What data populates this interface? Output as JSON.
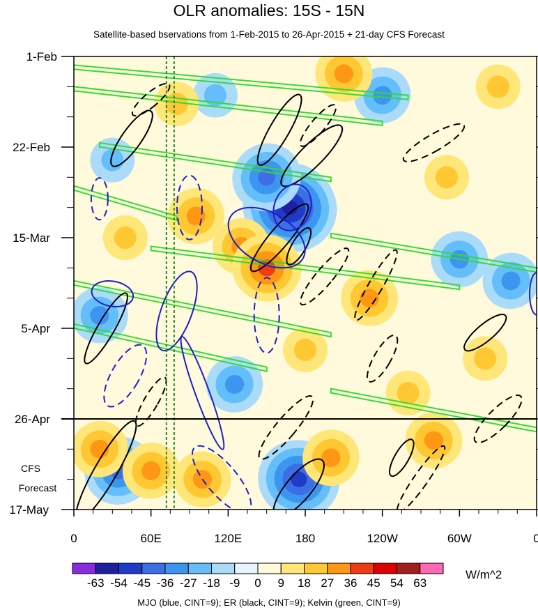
{
  "chart_data": {
    "type": "heatmap",
    "title": "OLR anomalies: 15S - 15N",
    "subtitle": "Satellite-based bservations from 1-Feb-2015 to 26-Apr-2015 + 21-day CFS Forecast",
    "x_axis": {
      "tick_labels": [
        "0",
        "60E",
        "120E",
        "180",
        "120W",
        "60W",
        "0"
      ],
      "tick_values_deg_east": [
        0,
        60,
        120,
        180,
        240,
        300,
        360
      ],
      "range": [
        0,
        360
      ]
    },
    "y_axis": {
      "tick_labels": [
        "1-Feb",
        "22-Feb",
        "15-Mar",
        "5-Apr",
        "26-Apr",
        "17-May"
      ],
      "range": [
        "2015-02-01",
        "2015-05-17"
      ],
      "direction": "time increases downward"
    },
    "observation_end_line": "2015-04-26",
    "forecast_label": [
      "CFS",
      "Forecast"
    ],
    "colorbar": {
      "units": "W/m^2",
      "levels": [
        -63,
        -54,
        -45,
        -36,
        -27,
        -18,
        -9,
        0,
        9,
        18,
        27,
        36,
        45,
        54,
        63
      ],
      "colors": [
        "#8a2be2",
        "#1e1ea0",
        "#1e3cc8",
        "#3c6ee6",
        "#3c96f0",
        "#64befa",
        "#aadcfa",
        "#e6f5ff",
        "#fffadc",
        "#ffe678",
        "#ffc832",
        "#ff9614",
        "#f03c14",
        "#dc0000",
        "#a01e1e",
        "#ff69b4"
      ]
    },
    "contour_overlays": [
      {
        "name": "MJO",
        "color": "#1e1ec8"
      },
      {
        "name": "ER",
        "color": "#000000"
      },
      {
        "name": "Kelvin",
        "color": "#32dc32"
      }
    ],
    "footnote": "MJO (blue, CINT=9); ER (black, CINT=9); Kelvin (green, CINT=9)",
    "vertical_reference_lines_deg_east": [
      72,
      78
    ],
    "anomaly_regions": [
      {
        "lon": 168,
        "date": "2015-03-08",
        "value": -60
      },
      {
        "lon": 150,
        "date": "2015-03-01",
        "value": -40
      },
      {
        "lon": 175,
        "date": "2015-05-10",
        "value": -45
      },
      {
        "lon": 35,
        "date": "2015-05-08",
        "value": -40
      },
      {
        "lon": 20,
        "date": "2015-04-02",
        "value": -35
      },
      {
        "lon": 240,
        "date": "2015-02-10",
        "value": -30
      },
      {
        "lon": 300,
        "date": "2015-03-20",
        "value": -30
      },
      {
        "lon": 125,
        "date": "2015-04-18",
        "value": -30
      },
      {
        "lon": 110,
        "date": "2015-02-10",
        "value": -25
      },
      {
        "lon": 340,
        "date": "2015-03-25",
        "value": -30
      },
      {
        "lon": 30,
        "date": "2015-02-25",
        "value": -25
      },
      {
        "lon": 130,
        "date": "2015-03-17",
        "value": 35
      },
      {
        "lon": 150,
        "date": "2015-03-22",
        "value": 40
      },
      {
        "lon": 95,
        "date": "2015-03-10",
        "value": 30
      },
      {
        "lon": 210,
        "date": "2015-02-05",
        "value": 30
      },
      {
        "lon": 80,
        "date": "2015-02-12",
        "value": 25
      },
      {
        "lon": 230,
        "date": "2015-03-29",
        "value": 28
      },
      {
        "lon": 290,
        "date": "2015-03-01",
        "value": 25
      },
      {
        "lon": 320,
        "date": "2015-04-12",
        "value": 25
      },
      {
        "lon": 60,
        "date": "2015-05-08",
        "value": 30
      },
      {
        "lon": 100,
        "date": "2015-05-10",
        "value": 28
      },
      {
        "lon": 200,
        "date": "2015-05-05",
        "value": 30
      },
      {
        "lon": 280,
        "date": "2015-05-01",
        "value": 35
      },
      {
        "lon": 20,
        "date": "2015-05-03",
        "value": 28
      },
      {
        "lon": 260,
        "date": "2015-04-20",
        "value": 25
      },
      {
        "lon": 40,
        "date": "2015-03-15",
        "value": 20
      },
      {
        "lon": 180,
        "date": "2015-04-10",
        "value": 22
      },
      {
        "lon": 330,
        "date": "2015-02-08",
        "value": 22
      }
    ]
  }
}
